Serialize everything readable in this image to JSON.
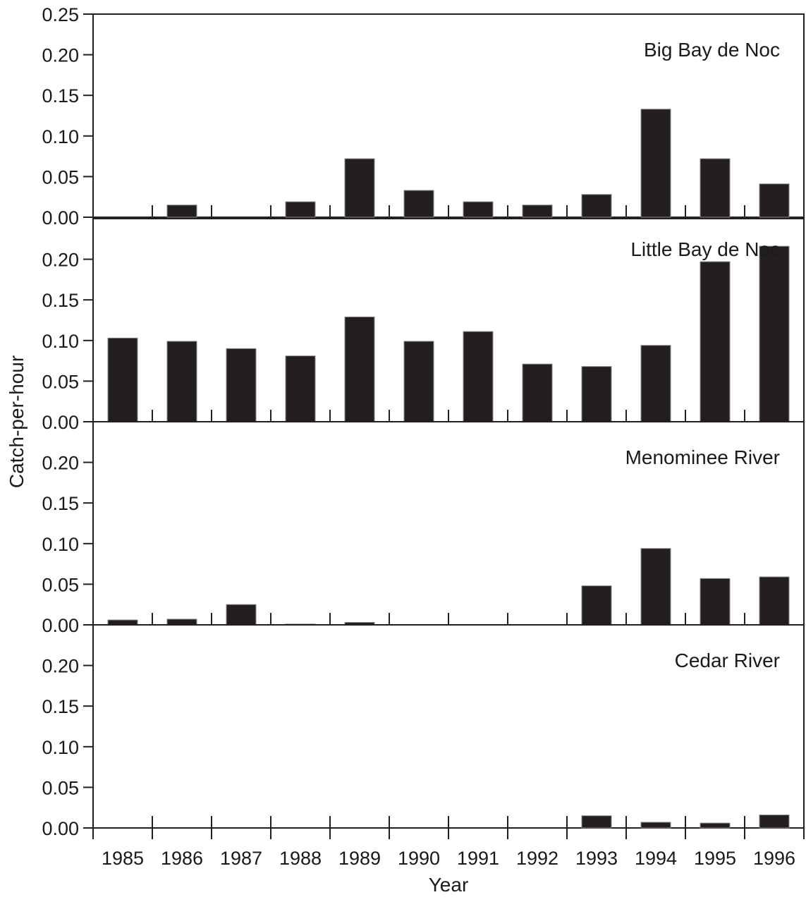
{
  "chart_data": {
    "type": "bar",
    "xlabel": "Year",
    "ylabel": "Catch-per-hour",
    "categories": [
      "1985",
      "1986",
      "1987",
      "1988",
      "1989",
      "1990",
      "1991",
      "1992",
      "1993",
      "1994",
      "1995",
      "1996"
    ],
    "ylim": [
      0,
      0.25
    ],
    "yticks": [
      "0.00",
      "0.05",
      "0.10",
      "0.15",
      "0.20",
      "0.25"
    ],
    "bar_color": "#231f20",
    "panels": [
      {
        "name": "Big Bay de Noc",
        "values": [
          0,
          0.015,
          0,
          0.019,
          0.072,
          0.033,
          0.019,
          0.015,
          0.028,
          0.133,
          0.072,
          0.041
        ]
      },
      {
        "name": "Little Bay de Noc",
        "values": [
          0.103,
          0.099,
          0.09,
          0.081,
          0.129,
          0.099,
          0.111,
          0.071,
          0.068,
          0.094,
          0.197,
          0.216
        ]
      },
      {
        "name": "Menominee River",
        "values": [
          0.006,
          0.007,
          0.025,
          0.001,
          0.003,
          0,
          0,
          0,
          0.048,
          0.094,
          0.057,
          0.059
        ]
      },
      {
        "name": "Cedar River",
        "values": [
          0,
          0,
          0,
          0,
          0,
          0,
          0,
          0,
          0.015,
          0.007,
          0.006,
          0.016
        ]
      }
    ]
  }
}
